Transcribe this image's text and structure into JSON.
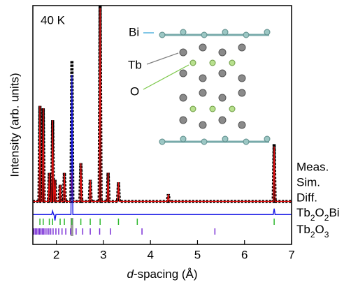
{
  "chart_data": {
    "type": "line",
    "annotation": "40 K",
    "x_label": "d-spacing (Å)",
    "y_label": "Intensity (arb. units)",
    "xlim": [
      1.5,
      7.0
    ],
    "xticks": [
      2,
      3,
      4,
      5,
      6,
      7
    ],
    "ylim": [
      0,
      100
    ],
    "x": [
      1.5,
      1.63,
      1.65,
      1.67,
      1.7,
      1.72,
      1.74,
      1.83,
      1.85,
      1.87,
      1.9,
      1.92,
      1.94,
      1.95,
      1.97,
      1.99,
      2.06,
      2.08,
      2.1,
      2.15,
      2.17,
      2.19,
      2.31,
      2.33,
      2.35,
      2.5,
      2.52,
      2.54,
      2.7,
      2.72,
      2.74,
      2.91,
      2.93,
      2.95,
      3.08,
      3.1,
      3.12,
      3.3,
      3.32,
      3.34,
      4.36,
      4.38,
      4.4,
      6.61,
      6.63,
      6.65,
      7.0
    ],
    "series": [
      {
        "name": "Meas.",
        "color": "#000000",
        "values": [
          18,
          18,
          58,
          18,
          18,
          57,
          18,
          18,
          30,
          18,
          18,
          52,
          18,
          18,
          27,
          18,
          18,
          25,
          18,
          18,
          30,
          18,
          18,
          77,
          18,
          18,
          34,
          18,
          18,
          27,
          18,
          18,
          100,
          18,
          18,
          30,
          18,
          18,
          26,
          18,
          18,
          21,
          18,
          18,
          42,
          18,
          18
        ]
      },
      {
        "name": "Sim.",
        "color": "#e01010",
        "values": [
          18,
          18,
          58,
          18,
          18,
          57,
          18,
          18,
          30,
          18,
          18,
          52,
          18,
          18,
          27,
          18,
          18,
          25,
          18,
          18,
          30,
          18,
          18,
          30,
          18,
          18,
          34,
          18,
          18,
          27,
          18,
          18,
          99,
          18,
          18,
          30,
          18,
          18,
          26,
          18,
          18,
          21,
          18,
          18,
          41,
          18,
          18
        ]
      },
      {
        "name": "Diff.",
        "color": "#1a1ae6",
        "values": [
          12.5,
          12.5,
          12.5,
          12.5,
          12.5,
          12.5,
          12.5,
          12.5,
          12.5,
          12.5,
          12.5,
          14,
          12.5,
          12.5,
          10,
          12.5,
          12.5,
          12.5,
          12.5,
          12.5,
          12.5,
          12.5,
          12.5,
          71,
          12.5,
          12.5,
          12.5,
          12.5,
          12.5,
          12.5,
          12.5,
          12.5,
          12.5,
          12.5,
          12.5,
          12.5,
          12.5,
          12.5,
          12.5,
          12.5,
          12.5,
          12.5,
          12.5,
          12.5,
          15,
          12.5,
          12.5
        ]
      }
    ],
    "reflections": [
      {
        "name": "Tb2O2Bi",
        "color": "#2eb82e",
        "d": [
          1.65,
          1.72,
          1.85,
          1.92,
          2.08,
          2.17,
          2.33,
          2.52,
          2.72,
          2.93,
          3.32,
          3.72,
          6.63
        ]
      },
      {
        "name": "Tb2O3",
        "color": "#7a2fd6",
        "d": [
          1.52,
          1.55,
          1.58,
          1.61,
          1.64,
          1.67,
          1.7,
          1.73,
          1.76,
          1.8,
          1.84,
          1.88,
          1.93,
          1.99,
          2.05,
          2.12,
          2.2,
          2.3,
          2.42,
          2.56,
          2.72,
          2.92,
          3.15,
          3.82,
          5.37
        ]
      }
    ],
    "excluded_region": [
      2.3,
      2.36
    ],
    "inset_labels": [
      {
        "text": "Bi",
        "color": "#2a9fd6"
      },
      {
        "text": "Tb",
        "color": "#808080"
      },
      {
        "text": "O",
        "color": "#7cc84a"
      }
    ]
  }
}
